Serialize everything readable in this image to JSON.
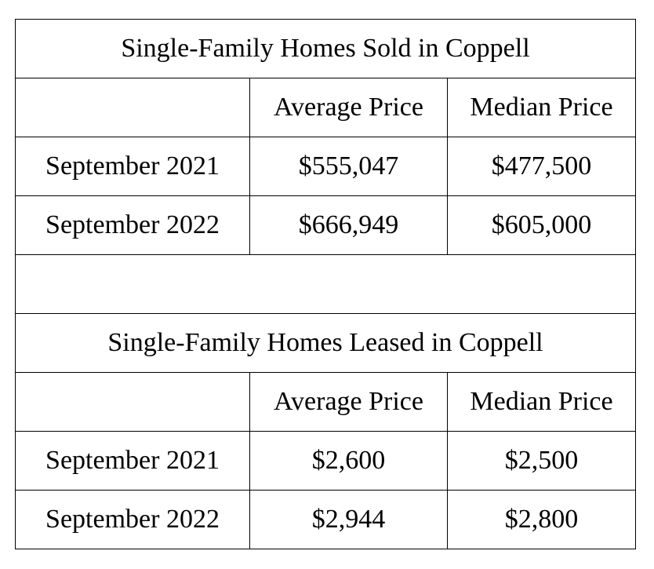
{
  "sold": {
    "title": "Single-Family Homes Sold in Coppell",
    "headers": [
      "",
      "Average Price",
      "Median Price"
    ],
    "rows": [
      {
        "period": "September 2021",
        "average": "$555,047",
        "median": "$477,500"
      },
      {
        "period": "September 2022",
        "average": "$666,949",
        "median": "$605,000"
      }
    ]
  },
  "leased": {
    "title": "Single-Family Homes Leased in Coppell",
    "headers": [
      "",
      "Average Price",
      "Median Price"
    ],
    "rows": [
      {
        "period": "September 2021",
        "average": "$2,600",
        "median": "$2,500"
      },
      {
        "period": "September 2022",
        "average": "$2,944",
        "median": "$2,800"
      }
    ]
  }
}
